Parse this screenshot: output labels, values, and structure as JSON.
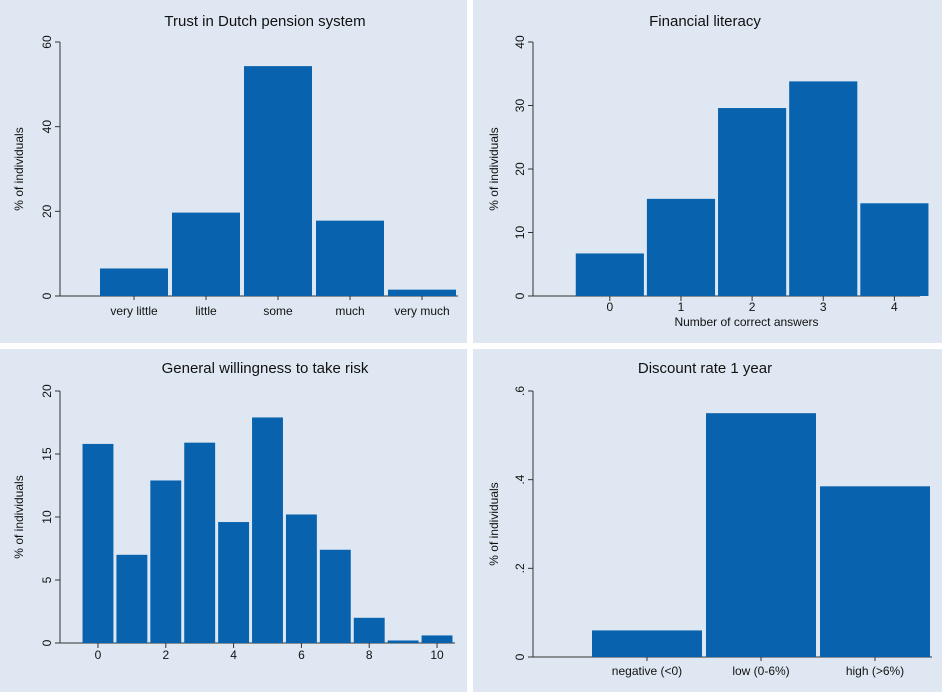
{
  "chart_data": [
    {
      "type": "bar",
      "title": "Trust in Dutch pension system",
      "ylabel": "% of individuals",
      "color": "#0862ae",
      "categories": [
        "very little",
        "little",
        "some",
        "much",
        "very much"
      ],
      "values": [
        6.5,
        19.7,
        54.3,
        17.8,
        1.5
      ],
      "ylim": [
        0,
        60
      ],
      "yticks": [
        0,
        20,
        40,
        60
      ]
    },
    {
      "type": "bar",
      "title": "Financial literacy",
      "ylabel": "% of individuals",
      "xlabel": "Number of correct answers",
      "color": "#0862ae",
      "x": [
        0,
        1,
        2,
        3,
        4
      ],
      "values": [
        6.7,
        15.3,
        29.6,
        33.8,
        14.6
      ],
      "xlim": [
        -1.08,
        4.36
      ],
      "xticks": [
        0,
        1,
        2,
        3,
        4
      ],
      "ylim": [
        0,
        40
      ],
      "yticks": [
        0,
        10,
        20,
        30,
        40
      ]
    },
    {
      "type": "bar",
      "title": "General willingness to take risk",
      "ylabel": "% of individuals",
      "color": "#0862ae",
      "x": [
        0,
        1,
        2,
        3,
        4,
        5,
        6,
        7,
        8,
        9,
        10
      ],
      "values": [
        15.8,
        7.0,
        12.9,
        15.9,
        9.6,
        17.9,
        10.2,
        7.4,
        2.0,
        0.2,
        0.6
      ],
      "xlim": [
        -1.12,
        10.53
      ],
      "xticks": [
        0,
        2,
        4,
        6,
        8,
        10
      ],
      "ylim": [
        0,
        20
      ],
      "yticks": [
        0,
        5,
        10,
        15,
        20
      ]
    },
    {
      "type": "bar",
      "title": "Discount rate 1 year",
      "ylabel": "% of individuals",
      "color": "#0862ae",
      "categories": [
        "negative (<0)",
        "low (0-6%)",
        "high (>6%)"
      ],
      "values": [
        0.06,
        0.55,
        0.385
      ],
      "ylim": [
        0,
        0.6
      ],
      "yticks": [
        0,
        {
          "value": 0.2,
          "label": ".2"
        },
        {
          "value": 0.4,
          "label": ".4"
        },
        {
          "value": 0.6,
          "label": ".6"
        }
      ]
    }
  ]
}
